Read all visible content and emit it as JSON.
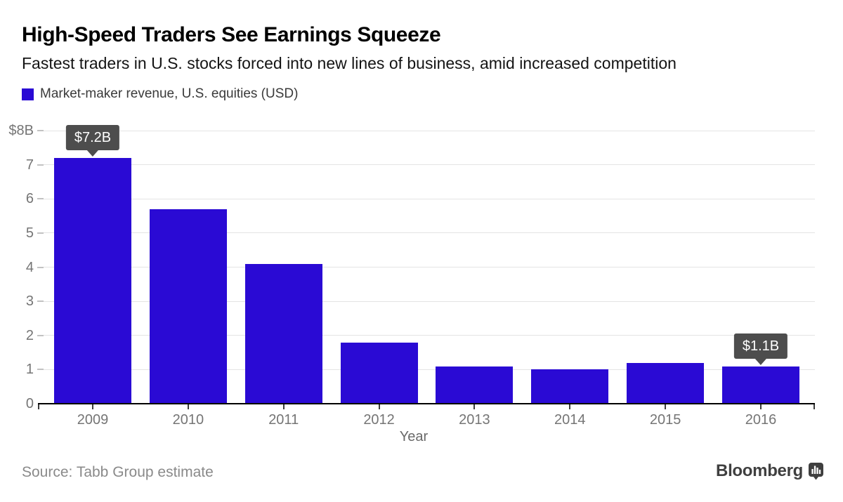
{
  "header": {
    "title": "High-Speed Traders See Earnings Squeeze",
    "subtitle": "Fastest traders in U.S. stocks forced into new lines of business, amid increased competition"
  },
  "legend": {
    "label": "Market-maker revenue, U.S. equities (USD)",
    "swatch_color": "#2a0ad4"
  },
  "chart_data": {
    "type": "bar",
    "categories": [
      "2009",
      "2010",
      "2011",
      "2012",
      "2013",
      "2014",
      "2015",
      "2016"
    ],
    "values": [
      7.2,
      5.7,
      4.1,
      1.8,
      1.1,
      1.0,
      1.2,
      1.1
    ],
    "series_name": "Market-maker revenue, U.S. equities (USD)",
    "title": "High-Speed Traders See Earnings Squeeze",
    "xlabel": "Year",
    "ylabel": "",
    "ylim": [
      0,
      8
    ],
    "yticks": [
      0,
      1,
      2,
      3,
      4,
      5,
      6,
      7,
      8
    ],
    "ytick_top_label": "$8B",
    "grid": true,
    "legend_position": "top-left",
    "bar_color": "#2a0ad4",
    "annotations": [
      {
        "category": "2009",
        "label": "$7.2B"
      },
      {
        "category": "2016",
        "label": "$1.1B"
      }
    ],
    "annotation_bg": "#4d4d4d"
  },
  "footer": {
    "source": "Source: Tabb Group estimate",
    "brand": "Bloomberg"
  },
  "colors": {
    "bar": "#2a0ad4",
    "callout_bg": "#4d4d4d",
    "gridline": "#e4e4e4",
    "axis": "#000000",
    "tick_label": "#757575"
  }
}
